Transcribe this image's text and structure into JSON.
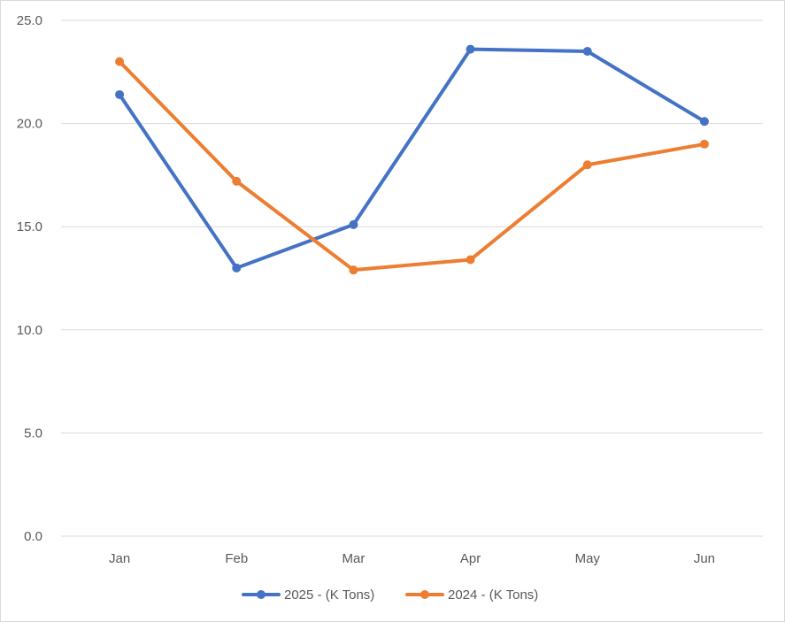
{
  "chart_data": {
    "type": "line",
    "categories": [
      "Jan",
      "Feb",
      "Mar",
      "Apr",
      "May",
      "Jun"
    ],
    "ylim": [
      0,
      25
    ],
    "yticks": [
      0,
      5,
      10,
      15,
      20,
      25
    ],
    "ytick_labels": [
      "0.0",
      "5.0",
      "10.0",
      "15.0",
      "20.0",
      "25.0"
    ],
    "grid": true,
    "legend_position": "bottom",
    "series": [
      {
        "name": "2025 - (K Tons)",
        "color": "#4472C4",
        "values": [
          21.4,
          13.0,
          15.1,
          23.6,
          23.5,
          20.1
        ]
      },
      {
        "name": "2024 - (K Tons)",
        "color": "#ED7D31",
        "values": [
          23.0,
          17.2,
          12.9,
          13.4,
          18.0,
          19.0
        ]
      }
    ]
  }
}
